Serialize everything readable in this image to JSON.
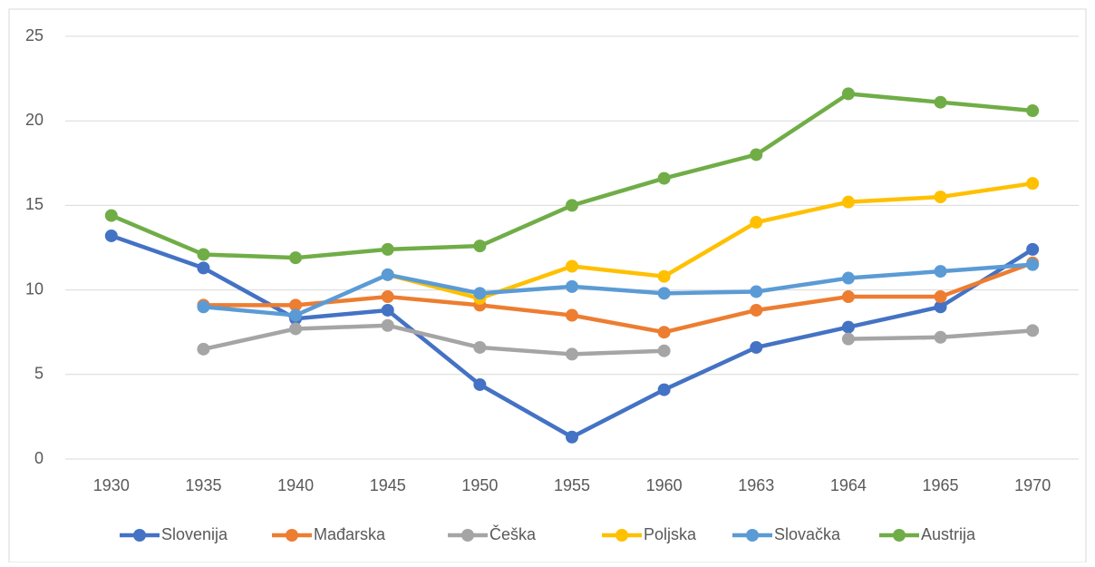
{
  "chart_data": {
    "type": "line",
    "categories": [
      "1930",
      "1935",
      "1940",
      "1945",
      "1950",
      "1955",
      "1960",
      "1963",
      "1964",
      "1965",
      "1970"
    ],
    "series": [
      {
        "name": "Slovenija",
        "color": "#4472c4",
        "values": [
          13.2,
          11.3,
          8.3,
          8.8,
          4.4,
          1.3,
          4.1,
          6.6,
          7.8,
          9.0,
          12.4
        ]
      },
      {
        "name": "Mađarska",
        "color": "#ed7d31",
        "values": [
          null,
          9.1,
          9.1,
          9.6,
          9.1,
          8.5,
          7.5,
          8.8,
          9.6,
          9.6,
          11.6
        ]
      },
      {
        "name": "Češka",
        "color": "#a5a5a5",
        "values": [
          null,
          6.5,
          7.7,
          7.9,
          6.6,
          6.2,
          6.4,
          null,
          7.1,
          7.2,
          7.6
        ]
      },
      {
        "name": "Poljska",
        "color": "#ffc000",
        "values": [
          null,
          null,
          null,
          10.9,
          9.5,
          11.4,
          10.8,
          14.0,
          15.2,
          15.5,
          16.3
        ]
      },
      {
        "name": "Slovačka",
        "color": "#5b9bd5",
        "values": [
          null,
          9.0,
          8.5,
          10.9,
          9.8,
          10.2,
          9.8,
          9.9,
          10.7,
          11.1,
          11.5
        ]
      },
      {
        "name": "Austrija",
        "color": "#70ad47",
        "values": [
          14.4,
          12.1,
          11.9,
          12.4,
          12.6,
          15.0,
          16.6,
          18.0,
          21.6,
          21.1,
          20.6
        ]
      }
    ],
    "ylim": [
      0,
      25
    ],
    "yticks": [
      0,
      5,
      10,
      15,
      20,
      25
    ],
    "grid": true,
    "legend": "bottom"
  }
}
